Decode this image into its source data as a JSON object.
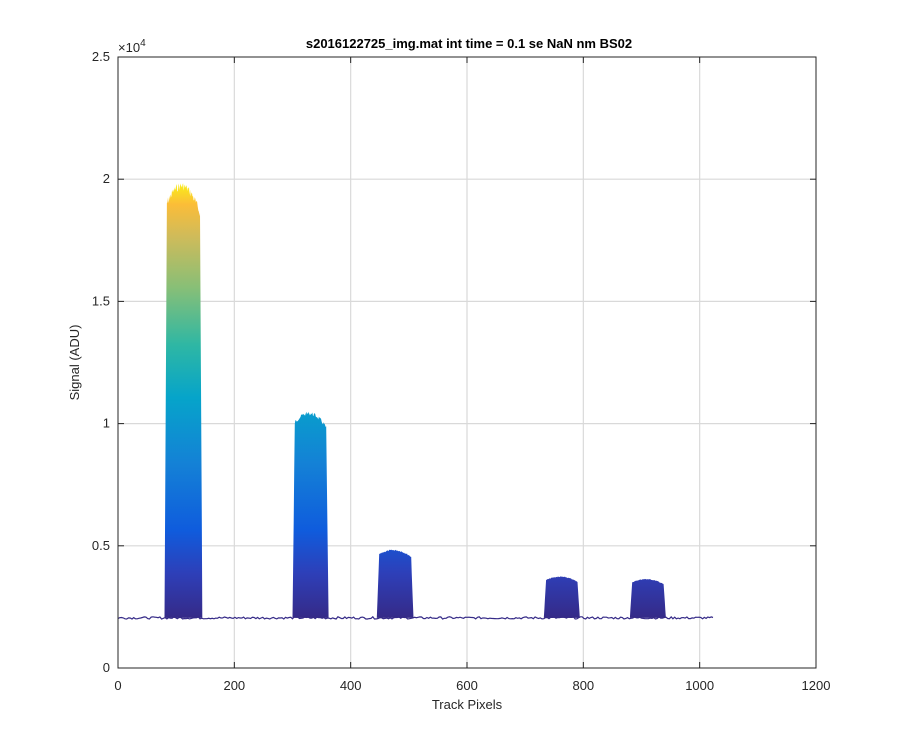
{
  "chart_data": {
    "type": "area",
    "title": "s2016122725_img.mat int time = 0.1 se  NaN nm BS02",
    "xlabel": "Track Pixels",
    "ylabel": "Signal (ADU)",
    "xlim": [
      0,
      1200
    ],
    "ylim": [
      0,
      25000
    ],
    "x_ticks": [
      0,
      200,
      400,
      600,
      800,
      1000,
      1200
    ],
    "x_tick_labels": [
      "0",
      "200",
      "400",
      "600",
      "800",
      "1000",
      "1200"
    ],
    "y_ticks": [
      0,
      5000,
      10000,
      15000,
      20000,
      25000
    ],
    "y_tick_labels": [
      "0",
      "0.5",
      "1",
      "1.5",
      "2",
      "2.5"
    ],
    "y_exponent_label": "×10",
    "y_exponent_power": "4",
    "grid": true,
    "colormap": "parula",
    "baseline": 2050,
    "data_x_range": [
      0,
      1024
    ],
    "bands": [
      {
        "x_start": 80,
        "x_end": 145,
        "peak": 19900,
        "mid_value": 6500
      },
      {
        "x_start": 300,
        "x_end": 362,
        "peak": 10500,
        "mid_value": 5900
      },
      {
        "x_start": 445,
        "x_end": 508,
        "peak": 4850,
        "mid_value": 4850
      },
      {
        "x_start": 732,
        "x_end": 794,
        "peak": 3750,
        "mid_value": 3750
      },
      {
        "x_start": 880,
        "x_end": 942,
        "peak": 3650,
        "mid_value": 3650
      }
    ],
    "colors": {
      "low": "#352a87",
      "mid1": "#0f5cdd",
      "mid2": "#1481d6",
      "mid3": "#06a4ca",
      "mid4": "#2eb7a4",
      "mid5": "#87bf77",
      "mid6": "#d1bb59",
      "high": "#fbbd38",
      "top": "#f9fb0e"
    }
  }
}
